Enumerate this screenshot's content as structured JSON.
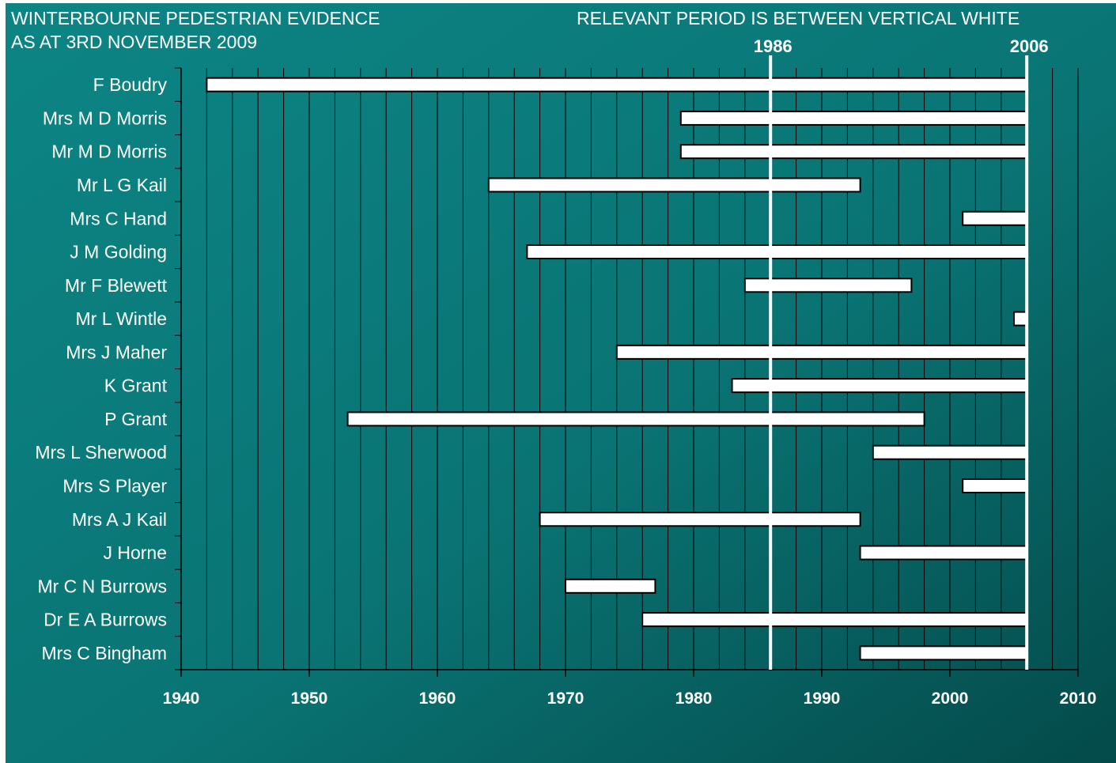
{
  "header": {
    "title_line_1": "WINTERBOURNE PEDESTRIAN EVIDENCE",
    "title_line_2": "AS AT 3RD NOVEMBER 2009",
    "note": "RELEVANT PERIOD IS BETWEEN VERTICAL WHITE"
  },
  "colors": {
    "background_light": "#0d8585",
    "background_dark": "#044a4a",
    "bar_fill": "#ffffff",
    "bar_outline": "#000000",
    "grid_line": "#000000",
    "text": "#ffffff"
  },
  "chart_data": {
    "type": "bar",
    "orientation": "horizontal",
    "xlim": [
      1940,
      2010
    ],
    "x_ticks": [
      "1940",
      "1950",
      "1960",
      "1970",
      "1980",
      "1990",
      "2000",
      "2010"
    ],
    "x_minor_step": 2,
    "grid": true,
    "reference_lines": [
      {
        "value": 1986,
        "label": "1986"
      },
      {
        "value": 2006,
        "label": "2006"
      }
    ],
    "categories": [
      "F Boudry",
      "Mrs M D Morris",
      "Mr M D Morris",
      "Mr L G Kail",
      "Mrs C Hand",
      "J M Golding",
      "Mr F Blewett",
      "Mr L Wintle",
      "Mrs J Maher",
      "K Grant",
      "P Grant",
      "Mrs L Sherwood",
      "Mrs S Player",
      "Mrs A J Kail",
      "J Horne",
      "Mr C N Burrows",
      "Dr E A Burrows",
      "Mrs C Bingham"
    ],
    "ranges": [
      [
        1942,
        2006
      ],
      [
        1979,
        2006
      ],
      [
        1979,
        2006
      ],
      [
        1964,
        1993
      ],
      [
        2001,
        2006
      ],
      [
        1967,
        2006
      ],
      [
        1984,
        1997
      ],
      [
        2005,
        2006
      ],
      [
        1974,
        2006
      ],
      [
        1983,
        2006
      ],
      [
        1953,
        1998
      ],
      [
        1994,
        2006
      ],
      [
        2001,
        2006
      ],
      [
        1968,
        1993
      ],
      [
        1993,
        2006
      ],
      [
        1970,
        1977
      ],
      [
        1976,
        2006
      ],
      [
        1993,
        2006
      ]
    ]
  }
}
